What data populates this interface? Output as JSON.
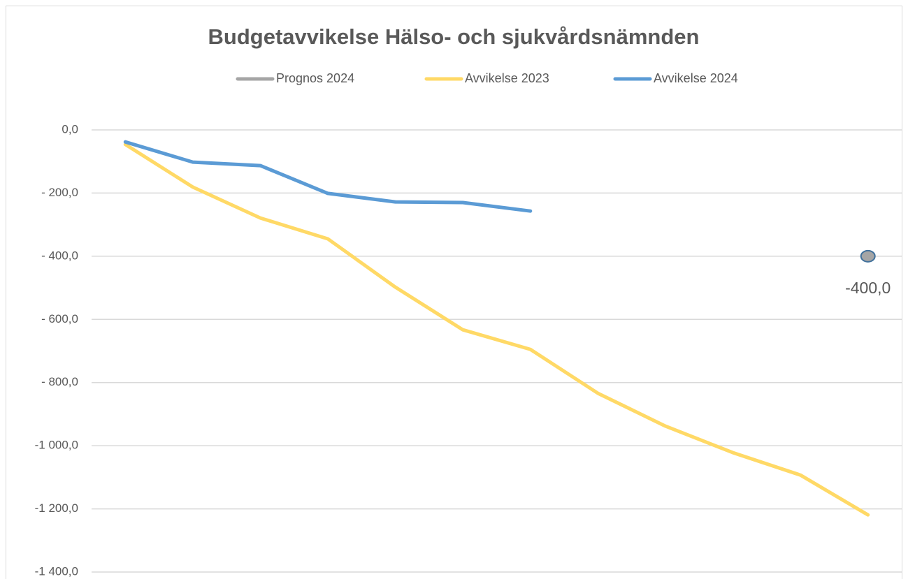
{
  "chart_data": {
    "type": "line",
    "title": "Budgetavvikelse Hälso- och sjukvårdsnämnden",
    "categories": [
      null,
      null,
      null,
      null,
      null,
      null,
      null,
      null,
      null,
      null,
      null,
      null
    ],
    "series": [
      {
        "name": "Prognos 2024",
        "color": "#a5a5a5",
        "values": [
          null,
          null,
          null,
          null,
          null,
          null,
          null,
          null,
          null,
          null,
          null,
          -400
        ],
        "value_labels": [
          null,
          null,
          null,
          null,
          null,
          null,
          null,
          null,
          null,
          null,
          null,
          "-400,0"
        ]
      },
      {
        "name": "Avvikelse 2023",
        "color": "#ffd966",
        "values": [
          -46,
          -181,
          -279,
          -345,
          -498,
          -633,
          -695,
          -834,
          -938,
          -1022,
          -1093,
          -1219
        ]
      },
      {
        "name": "Avvikelse 2024",
        "color": "#5b9bd5",
        "values": [
          -38,
          -102,
          -113,
          -201,
          -228,
          -230,
          -257,
          null,
          null,
          null,
          null,
          null
        ]
      }
    ],
    "ylim": [
      -1400,
      0
    ],
    "yticks": [
      {
        "value": 0,
        "label": "0,0"
      },
      {
        "value": -200,
        "label": "- 200,0"
      },
      {
        "value": -400,
        "label": "- 400,0"
      },
      {
        "value": -600,
        "label": "- 600,0"
      },
      {
        "value": -800,
        "label": "- 800,0"
      },
      {
        "value": -1000,
        "label": "-1 000,0"
      },
      {
        "value": -1200,
        "label": "-1 200,0"
      },
      {
        "value": -1400,
        "label": "-1 400,0"
      }
    ],
    "grid": true,
    "legend": "top"
  }
}
